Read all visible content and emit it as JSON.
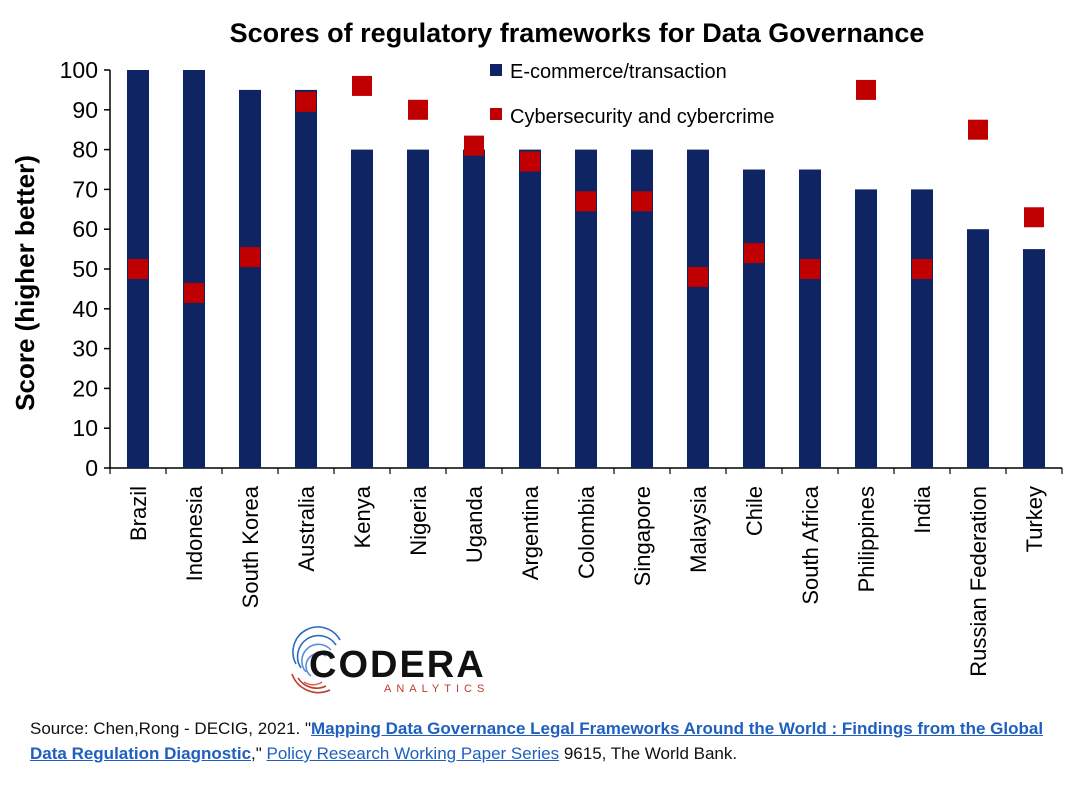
{
  "chart_data": {
    "type": "bar",
    "title": "Scores of regulatory frameworks for Data Governance",
    "xlabel": "",
    "ylabel": "Score (higher better)",
    "ylim": [
      0,
      100
    ],
    "yticks": [
      0,
      10,
      20,
      30,
      40,
      50,
      60,
      70,
      80,
      90,
      100
    ],
    "grid": false,
    "legend_position": "top-right",
    "categories": [
      "Brazil",
      "Indonesia",
      "South Korea",
      "Australia",
      "Kenya",
      "Nigeria",
      "Uganda",
      "Argentina",
      "Colombia",
      "Singapore",
      "Malaysia",
      "Chile",
      "South Africa",
      "Philippines",
      "India",
      "Russian Federation",
      "Turkey"
    ],
    "series": [
      {
        "name": "E-commerce/transaction",
        "mark": "bar",
        "color": "#0e2463",
        "values": [
          100,
          100,
          95,
          95,
          80,
          80,
          80,
          80,
          80,
          80,
          80,
          75,
          75,
          70,
          70,
          60,
          55
        ]
      },
      {
        "name": "Cybersecurity and cybercrime",
        "mark": "square-marker",
        "color": "#c00000",
        "values": [
          50,
          44,
          53,
          92,
          96,
          90,
          81,
          77,
          67,
          67,
          48,
          54,
          50,
          95,
          50,
          85,
          63
        ]
      }
    ]
  },
  "logo": {
    "name": "CODERA",
    "tagline": "ANALYTICS",
    "icon": "fingerprint-icon",
    "accent_colors": [
      "#2b6bc0",
      "#c0392b"
    ]
  },
  "source": {
    "prefix": "Source: Chen,Rong - DECIG, 2021. \"",
    "paper_title": "Mapping Data Governance Legal Frameworks Around the World : Findings from the Global Data Regulation Diagnostic",
    "mid": ",\" ",
    "series_title": "Policy Research Working Paper Series",
    "suffix": " 9615, The World Bank."
  }
}
